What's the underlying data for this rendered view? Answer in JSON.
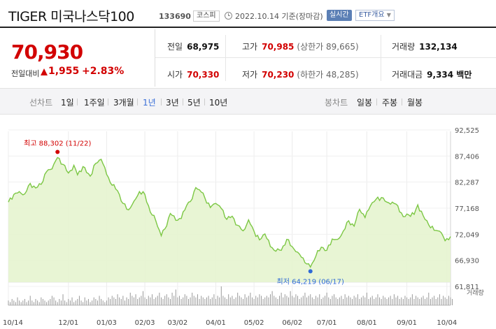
{
  "header": {
    "title": "TIGER 미국나스닥100",
    "code": "133690",
    "market": "코스피",
    "date": "2022.10.14 기준(장마감)",
    "realtime": "실시간",
    "etf_menu": "ETF개요"
  },
  "price": {
    "current": "70,930",
    "change_label": "전일대비",
    "change_value": "1,955",
    "change_pct": "+2.83%",
    "accent": "#d20000"
  },
  "stats": {
    "prev_close": {
      "label": "전일",
      "value": "68,975"
    },
    "open": {
      "label": "시가",
      "value": "70,330"
    },
    "high": {
      "label": "고가",
      "value": "70,985",
      "sub": "(상한가 89,665)"
    },
    "low": {
      "label": "저가",
      "value": "70,230",
      "sub": "(하한가 48,285)"
    },
    "volume": {
      "label": "거래량",
      "value": "132,134"
    },
    "amount": {
      "label": "거래대금",
      "value": "9,334 백만"
    }
  },
  "tabs": {
    "line_label": "선차트",
    "line": [
      "1일",
      "1주일",
      "3개월",
      "1년",
      "3년",
      "5년",
      "10년"
    ],
    "active": "1년",
    "candle_label": "봉차트",
    "candle": [
      "일봉",
      "주봉",
      "월봉"
    ]
  },
  "chart_data": {
    "type": "area",
    "title": "",
    "xlabel": "",
    "ylabel": "",
    "ylim": [
      61811,
      92525
    ],
    "y_ticks": [
      "92,525",
      "87,406",
      "82,287",
      "77,168",
      "72,049",
      "66,930",
      "61,811"
    ],
    "x_ticks": [
      "10/14",
      "12/01",
      "01/03",
      "02/03",
      "03/02",
      "04/01",
      "05/02",
      "06/02",
      "07/01",
      "08/01",
      "09/01",
      "10/04"
    ],
    "x_tick_index": [
      0,
      33,
      54,
      75,
      93,
      114,
      135,
      156,
      175,
      197,
      219,
      241
    ],
    "high_annotation": {
      "text": "최고 88,302 (11/22)",
      "index": 27,
      "value": 88302
    },
    "low_annotation": {
      "text": "최저 64,219 (06/17)",
      "index": 166,
      "value": 64219
    },
    "volume_label": "거래량",
    "line_color": "#7cc744",
    "fill_color": "#e6f4cf",
    "anchors": [
      [
        0,
        78500
      ],
      [
        3,
        80200
      ],
      [
        6,
        80800
      ],
      [
        9,
        80300
      ],
      [
        12,
        82600
      ],
      [
        15,
        81600
      ],
      [
        18,
        82400
      ],
      [
        21,
        85200
      ],
      [
        24,
        85800
      ],
      [
        27,
        88302
      ],
      [
        30,
        86800
      ],
      [
        33,
        84900
      ],
      [
        36,
        86600
      ],
      [
        38,
        84500
      ],
      [
        41,
        86300
      ],
      [
        43,
        85000
      ],
      [
        45,
        84200
      ],
      [
        48,
        87000
      ],
      [
        51,
        87900
      ],
      [
        54,
        84600
      ],
      [
        57,
        82200
      ],
      [
        60,
        81000
      ],
      [
        63,
        78200
      ],
      [
        66,
        76800
      ],
      [
        69,
        78700
      ],
      [
        72,
        80800
      ],
      [
        75,
        80200
      ],
      [
        78,
        76300
      ],
      [
        81,
        74400
      ],
      [
        84,
        71100
      ],
      [
        86,
        72600
      ],
      [
        89,
        76000
      ],
      [
        92,
        74500
      ],
      [
        95,
        74900
      ],
      [
        98,
        77800
      ],
      [
        101,
        79200
      ],
      [
        103,
        81700
      ],
      [
        106,
        80700
      ],
      [
        108,
        79400
      ],
      [
        111,
        77300
      ],
      [
        114,
        78200
      ],
      [
        117,
        77100
      ],
      [
        120,
        74700
      ],
      [
        123,
        75400
      ],
      [
        126,
        73400
      ],
      [
        129,
        72200
      ],
      [
        132,
        74600
      ],
      [
        135,
        72100
      ],
      [
        138,
        70200
      ],
      [
        141,
        71500
      ],
      [
        144,
        68700
      ],
      [
        147,
        67700
      ],
      [
        150,
        67900
      ],
      [
        153,
        70300
      ],
      [
        156,
        68700
      ],
      [
        159,
        67500
      ],
      [
        162,
        66200
      ],
      [
        164,
        64900
      ],
      [
        166,
        64219
      ],
      [
        169,
        66600
      ],
      [
        172,
        68600
      ],
      [
        175,
        67900
      ],
      [
        178,
        70400
      ],
      [
        181,
        70300
      ],
      [
        184,
        72100
      ],
      [
        187,
        74400
      ],
      [
        190,
        73200
      ],
      [
        193,
        76900
      ],
      [
        196,
        75100
      ],
      [
        199,
        77700
      ],
      [
        202,
        79100
      ],
      [
        205,
        79500
      ],
      [
        208,
        78500
      ],
      [
        211,
        78500
      ],
      [
        214,
        77700
      ],
      [
        217,
        75300
      ],
      [
        220,
        75700
      ],
      [
        223,
        75800
      ],
      [
        225,
        77900
      ],
      [
        228,
        75500
      ],
      [
        231,
        73500
      ],
      [
        234,
        72300
      ],
      [
        237,
        72100
      ],
      [
        240,
        70000
      ],
      [
        243,
        70930
      ]
    ],
    "volume_bars": [
      3,
      2,
      4,
      3,
      2,
      5,
      3,
      2,
      3,
      4,
      2,
      3,
      6,
      3,
      2,
      4,
      3,
      2,
      5,
      4,
      3,
      2,
      3,
      4,
      6,
      5,
      3,
      2,
      4,
      3,
      7,
      3,
      2,
      4,
      3,
      5,
      2,
      3,
      4,
      6,
      3,
      2,
      5,
      3,
      4,
      2,
      3,
      5,
      4,
      3,
      6,
      4,
      3,
      2,
      3,
      5,
      4,
      6,
      5,
      4,
      7,
      5,
      4,
      6,
      3,
      5,
      4,
      8,
      6,
      5,
      7,
      4,
      5,
      6,
      9,
      5,
      4,
      6,
      5,
      7,
      4,
      5,
      6,
      8,
      5,
      4,
      6,
      7,
      5,
      4,
      8,
      6,
      10,
      5,
      6,
      4,
      5,
      7,
      6,
      4,
      5,
      8,
      6,
      5,
      7,
      4,
      6,
      5,
      4,
      5,
      6,
      4,
      5,
      7,
      4,
      6,
      5,
      12,
      6,
      5,
      4,
      7,
      5,
      6,
      4,
      5,
      8,
      6,
      5,
      4,
      7,
      5,
      6,
      8,
      5,
      4,
      6,
      5,
      7,
      6,
      4,
      5,
      6,
      5,
      7,
      9,
      6,
      5,
      4,
      6,
      8,
      5,
      7,
      6,
      5,
      9,
      6,
      5,
      7,
      6,
      4,
      5,
      6,
      8,
      5,
      6,
      7,
      5,
      4,
      6,
      5,
      7,
      4,
      5,
      6,
      8,
      5,
      4,
      6,
      7,
      5,
      4,
      5,
      6,
      4,
      7,
      5,
      6,
      5,
      4,
      6,
      5,
      7,
      4,
      5,
      6,
      5,
      8,
      4,
      5,
      6,
      4,
      5,
      7,
      5,
      4,
      6,
      5,
      4,
      5,
      6,
      4,
      7,
      5,
      6,
      4,
      5,
      4,
      6,
      5,
      4,
      5,
      7,
      4,
      6,
      5,
      4,
      5,
      6,
      4,
      5,
      8,
      4,
      5,
      6,
      4,
      5,
      7,
      4,
      6,
      5,
      4,
      6,
      5,
      4
    ]
  }
}
